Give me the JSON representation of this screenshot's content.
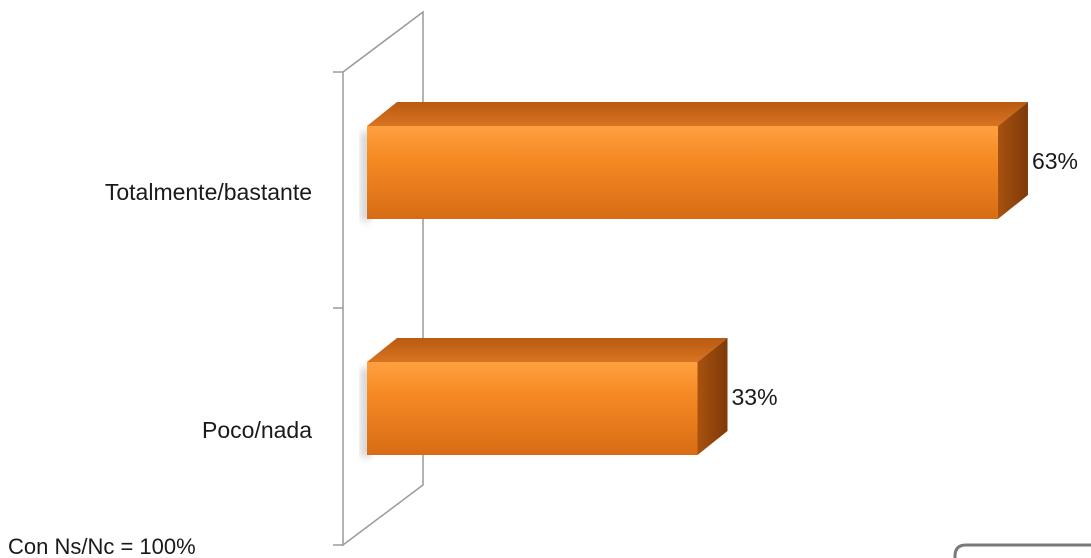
{
  "chart_data": {
    "type": "bar",
    "orientation": "horizontal",
    "style": "3d",
    "categories": [
      "Totalmente/bastante",
      "Poco/nada"
    ],
    "values": [
      63,
      33
    ],
    "value_labels": [
      "63%",
      "33%"
    ],
    "xlim": [
      0,
      65
    ],
    "grid": false,
    "legend": "none",
    "colors": {
      "bar_front": "#F58A24",
      "bar_top": "#C96514",
      "bar_side": "#9C4A0E",
      "axis_wall": "#9A9A9A"
    }
  },
  "note": "Con Ns/Nc = 100%"
}
